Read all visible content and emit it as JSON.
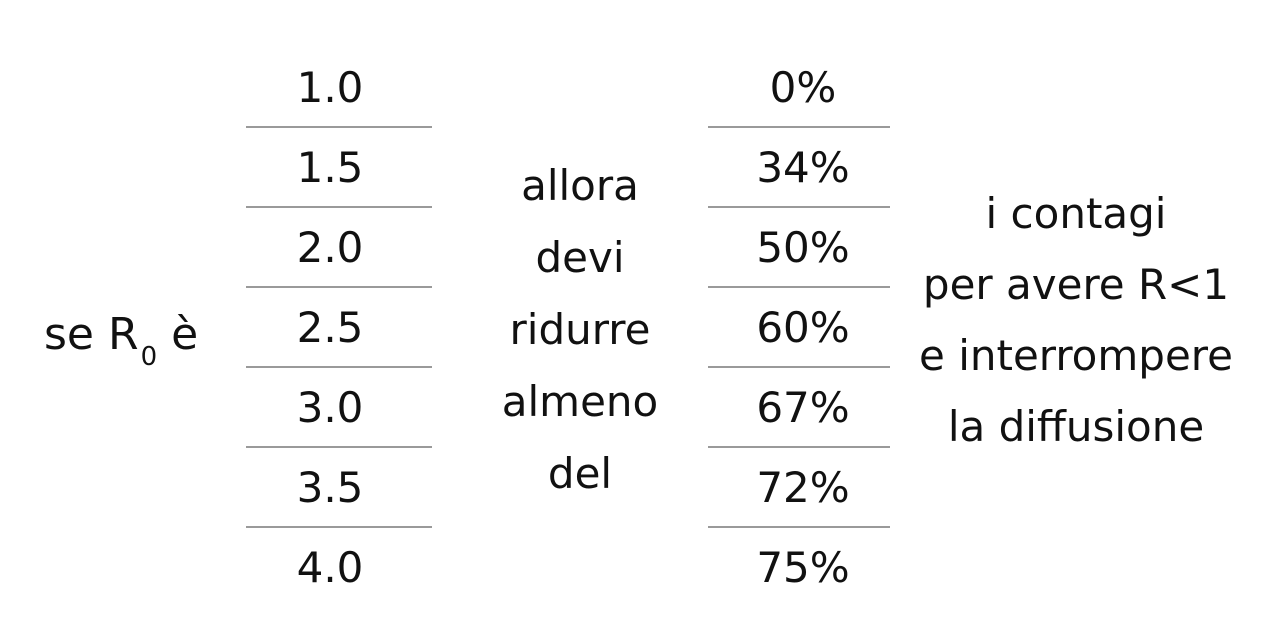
{
  "left_label": {
    "prefix": "se R",
    "subscript": "0",
    "suffix": "è"
  },
  "r0_values": [
    "1.0",
    "1.5",
    "2.0",
    "2.5",
    "3.0",
    "3.5",
    "4.0"
  ],
  "middle_text": [
    "allora",
    "devi",
    "ridurre",
    "almeno",
    "del"
  ],
  "percent_values": [
    "0%",
    "34%",
    "50%",
    "60%",
    "67%",
    "72%",
    "75%"
  ],
  "right_text": [
    "i contagi",
    "per avere R<1",
    "e interrompere",
    "la diffusione"
  ]
}
